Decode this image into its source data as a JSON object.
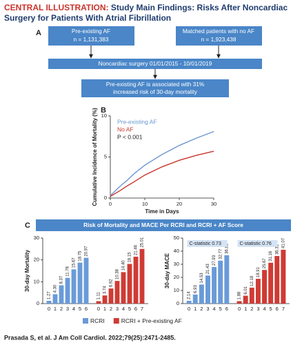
{
  "header": {
    "label": "CENTRAL ILLUSTRATION:",
    "title": [
      "Study Main Findings: Risks After Noncardiac",
      "Surgery for Patients With Atrial Fibrillation"
    ]
  },
  "panels": [
    "A",
    "B",
    "C"
  ],
  "flow": {
    "left": {
      "title": "Pre-existing AF",
      "n": "n = 1,131,383"
    },
    "right": {
      "title": "Matched patients with no AF",
      "n": "n = 1,923,438"
    },
    "surgery": "Noncardiac surgery 01/01/2015 - 10/01/2019",
    "finding": [
      "Pre-existing AF is associated with 31%",
      "increased risk of 30-day mortality"
    ]
  },
  "panel_c_title": "Risk of Mortality and MACE Per RCRI and RCRI + AF Score",
  "citation": "Prasada S, et al. J Am Coll Cardiol. 2022;79(25):2471-2485.",
  "chart_data": [
    {
      "type": "line",
      "ylabel": "Cumulative Incidence of Mortality (%)",
      "xlabel": "Time in Days",
      "x": [
        0,
        1,
        2,
        3,
        5,
        7,
        10,
        15,
        20,
        25,
        30
      ],
      "series": [
        {
          "name": "Pre-existing AF",
          "color": "#6a97d4",
          "values": [
            0.3,
            0.7,
            1.1,
            1.5,
            2.2,
            3.0,
            4.0,
            5.3,
            6.4,
            7.3,
            8.1
          ]
        },
        {
          "name": "No AF",
          "color": "#c8342b",
          "values": [
            0.2,
            0.45,
            0.7,
            0.95,
            1.5,
            2.0,
            2.8,
            3.8,
            4.6,
            5.2,
            5.7
          ]
        }
      ],
      "annotation": "P < 0.001",
      "xlim": [
        0,
        30
      ],
      "xticks": [
        0,
        10,
        20,
        30
      ],
      "ylim": [
        0,
        10
      ],
      "yticks": [
        0,
        5,
        10
      ]
    },
    {
      "type": "bar",
      "ylabel": "30-day Mortality",
      "ylim": [
        0,
        30
      ],
      "yticks": [
        0,
        10,
        20,
        30
      ],
      "series": [
        {
          "name": "RCRI",
          "color": "#6a9bd8",
          "categories": [
            "0",
            "1",
            "2",
            "3",
            "4",
            "5",
            "6"
          ],
          "values": [
            1.27,
            4.3,
            8.37,
            11.78,
            15.67,
            18.75,
            20.97
          ],
          "value_labels": [
            "1.27",
            "4.30",
            "8.37",
            "11.78",
            "15.67",
            "18.75",
            "20.97"
          ]
        },
        {
          "name": "RCRI + Pre-existing AF",
          "color": "#cf3b34",
          "categories": [
            "0",
            "1",
            "2",
            "3",
            "4",
            "5",
            "6",
            "7"
          ],
          "values": [
            1.11,
            3.74,
            6.92,
            10.38,
            14.4,
            18.15,
            21.46,
            25.01
          ],
          "value_labels": [
            "1.11",
            "3.74",
            "6.92",
            "10.38",
            "14.40",
            "18.15",
            "21.46",
            "25.01"
          ]
        }
      ]
    },
    {
      "type": "bar",
      "ylabel": "30-day MACE",
      "ylim": [
        0,
        50
      ],
      "yticks": [
        0,
        10,
        20,
        30,
        40,
        50
      ],
      "annotations": [
        "C-statistic 0.73",
        "C-statistic 0.76"
      ],
      "series": [
        {
          "color": "#6a9bd8",
          "categories": [
            "0",
            "1",
            "2",
            "3",
            "4",
            "5",
            "6"
          ],
          "values": [
            2.14,
            6.93,
            14.53,
            21.43,
            27.93,
            32.77,
            36.88
          ],
          "value_labels": [
            "2.14",
            "6.93",
            "14.53",
            "21.43",
            "27.93",
            "32.77",
            "36.88"
          ]
        },
        {
          "color": "#cf3b34",
          "categories": [
            "0",
            "1",
            "2",
            "3",
            "4",
            "5",
            "6",
            "7"
          ],
          "values": [
            1.88,
            6.01,
            12.18,
            18.91,
            25.67,
            31.16,
            36.31,
            41.07
          ],
          "value_labels": [
            "1.88",
            "6.01",
            "12.18",
            "18.91",
            "25.67",
            "31.16",
            "36.31",
            "41.07"
          ]
        }
      ]
    }
  ]
}
